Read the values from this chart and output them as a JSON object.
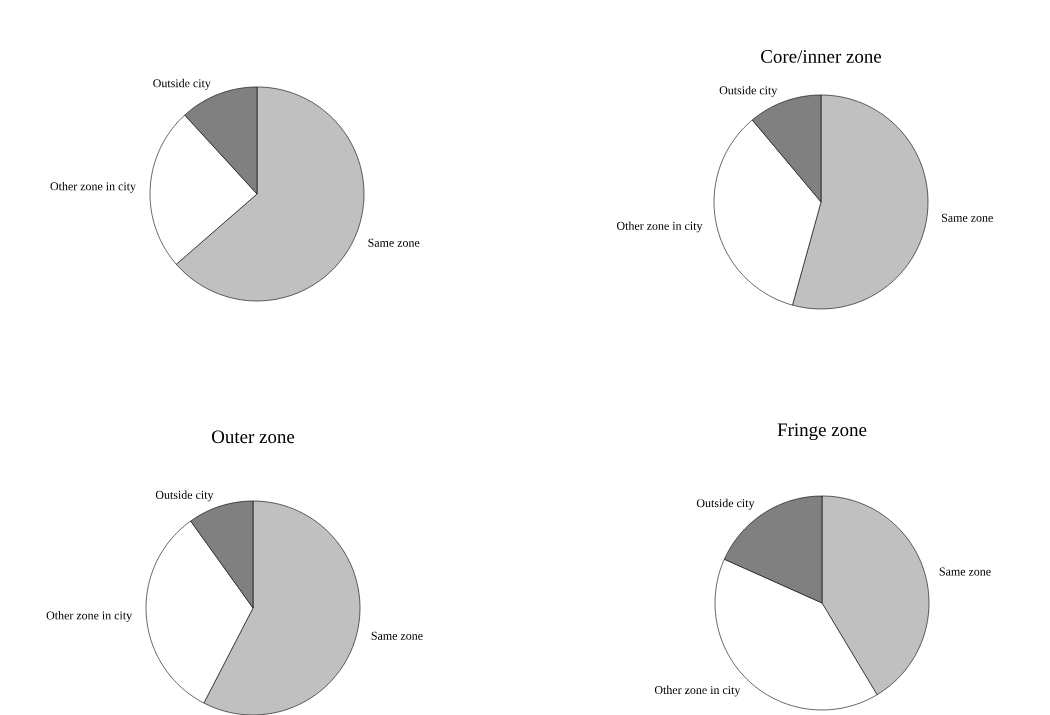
{
  "chart_data": [
    {
      "type": "pie",
      "categories": [
        "Same zone",
        "Other zone in city",
        "Outside city"
      ],
      "values": [
        63.6,
        24.6,
        11.8
      ],
      "colors": [
        "#c0c0c0",
        "#ffffff",
        "#808080"
      ]
    },
    {
      "type": "pie",
      "title": "Core/inner zone",
      "categories": [
        "Same zone",
        "Other zone in city",
        "Outside city"
      ],
      "values": [
        54.3,
        34.6,
        11.1
      ],
      "colors": [
        "#c0c0c0",
        "#ffffff",
        "#808080"
      ]
    },
    {
      "type": "pie",
      "title": "Outer zone",
      "categories": [
        "Same zone",
        "Other zone in city",
        "Outside city"
      ],
      "values": [
        57.6,
        32.5,
        9.9
      ],
      "colors": [
        "#c0c0c0",
        "#ffffff",
        "#808080"
      ]
    },
    {
      "type": "pie",
      "title": "Fringe zone",
      "categories": [
        "Same zone",
        "Other zone in city",
        "Outside city"
      ],
      "values": [
        41.4,
        40.3,
        18.3
      ],
      "colors": [
        "#c0c0c0",
        "#ffffff",
        "#808080"
      ]
    }
  ]
}
